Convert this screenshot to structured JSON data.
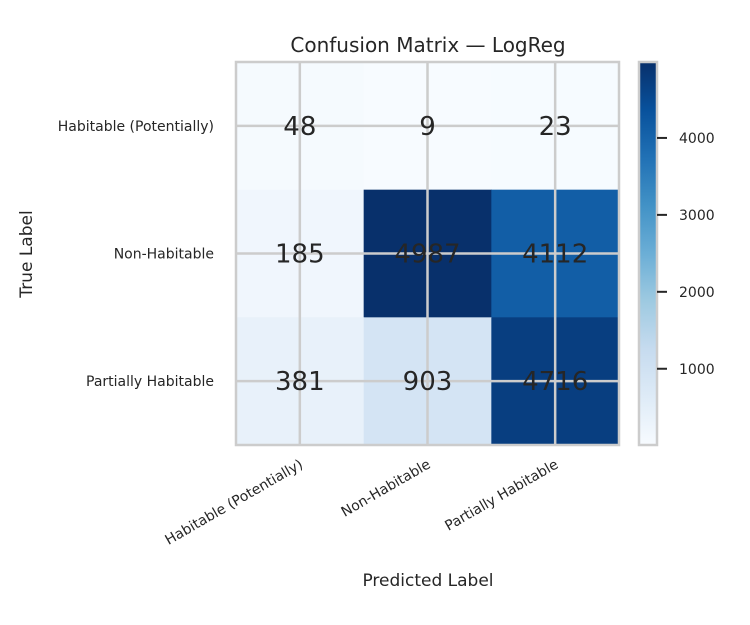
{
  "chart_data": {
    "type": "heatmap",
    "title": "Confusion Matrix — LogReg",
    "xlabel": "Predicted Label",
    "ylabel": "True Label",
    "x_categories": [
      "Habitable (Potentially)",
      "Non-Habitable",
      "Partially Habitable"
    ],
    "y_categories": [
      "Habitable (Potentially)",
      "Non-Habitable",
      "Partially Habitable"
    ],
    "values": [
      [
        48,
        9,
        23
      ],
      [
        185,
        4987,
        4112
      ],
      [
        381,
        903,
        4716
      ]
    ],
    "colormap": "Blues",
    "colorbar": {
      "range": [
        9,
        4987
      ],
      "ticks": [
        1000,
        2000,
        3000,
        4000
      ],
      "tick_labels": [
        "1000",
        "2000",
        "3000",
        "4000"
      ]
    },
    "grid": true
  }
}
